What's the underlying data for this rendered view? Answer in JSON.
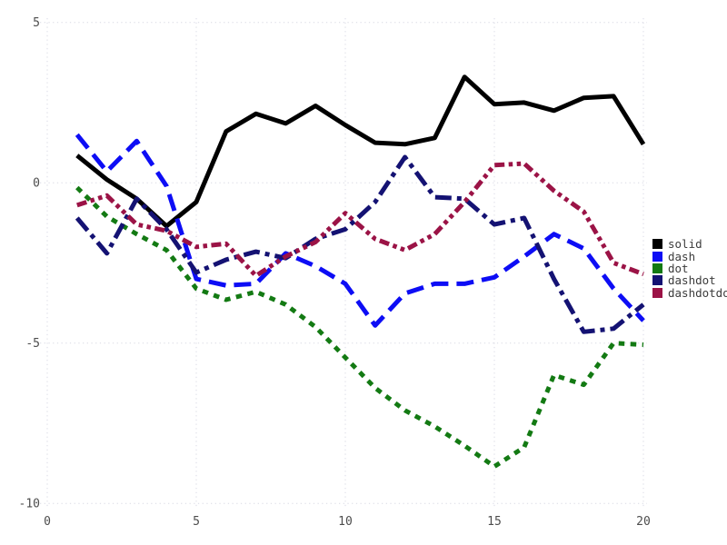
{
  "chart_data": {
    "type": "line",
    "title": "",
    "xlabel": "",
    "ylabel": "",
    "xlim": [
      0,
      20
    ],
    "ylim": [
      -10,
      5
    ],
    "x_ticks": [
      0,
      5,
      10,
      15,
      20
    ],
    "y_ticks": [
      5,
      0,
      -5,
      -10
    ],
    "grid": "dotted",
    "legend_position": "right-center",
    "x": [
      1,
      2,
      3,
      4,
      5,
      6,
      7,
      8,
      9,
      10,
      11,
      12,
      13,
      14,
      15,
      16,
      17,
      18,
      19,
      20
    ],
    "series": [
      {
        "name": "solid",
        "color": "#000000",
        "dash": "solid",
        "values": [
          0.85,
          0.1,
          -0.5,
          -1.35,
          -0.6,
          1.6,
          2.15,
          1.85,
          2.4,
          1.8,
          1.25,
          1.2,
          1.4,
          3.3,
          2.45,
          2.5,
          2.25,
          2.65,
          2.7,
          1.2
        ]
      },
      {
        "name": "dash",
        "color": "#0d0df5",
        "dash": "dash",
        "values": [
          1.5,
          0.35,
          1.3,
          -0.1,
          -3.0,
          -3.2,
          -3.15,
          -2.2,
          -2.6,
          -3.15,
          -4.45,
          -3.45,
          -3.15,
          -3.15,
          -2.95,
          -2.3,
          -1.6,
          -2.05,
          -3.3,
          -4.3
        ]
      },
      {
        "name": "dot",
        "color": "#137a13",
        "dash": "dot",
        "values": [
          -0.15,
          -1.05,
          -1.6,
          -2.1,
          -3.3,
          -3.65,
          -3.4,
          -3.8,
          -4.5,
          -5.45,
          -6.4,
          -7.1,
          -7.6,
          -8.2,
          -8.85,
          -8.25,
          -6.0,
          -6.3,
          -5.0,
          -5.05
        ]
      },
      {
        "name": "dashdot",
        "color": "#141273",
        "dash": "dashdot",
        "values": [
          -1.1,
          -2.2,
          -0.5,
          -1.45,
          -2.8,
          -2.4,
          -2.15,
          -2.35,
          -1.75,
          -1.45,
          -0.6,
          0.8,
          -0.45,
          -0.5,
          -1.3,
          -1.1,
          -3.0,
          -4.65,
          -4.55,
          -3.8
        ]
      },
      {
        "name": "dashdotdot",
        "color": "#9b1346",
        "dash": "dashdotdot",
        "values": [
          -0.7,
          -0.4,
          -1.3,
          -1.5,
          -2.0,
          -1.9,
          -2.9,
          -2.3,
          -1.85,
          -0.95,
          -1.75,
          -2.1,
          -1.6,
          -0.6,
          0.55,
          0.6,
          -0.25,
          -0.9,
          -2.5,
          -2.85
        ]
      }
    ]
  },
  "style": {
    "grid_color": "#d9dae4",
    "tick_color": "#4d4d4d",
    "background": "#ffffff",
    "line_width": 5
  }
}
